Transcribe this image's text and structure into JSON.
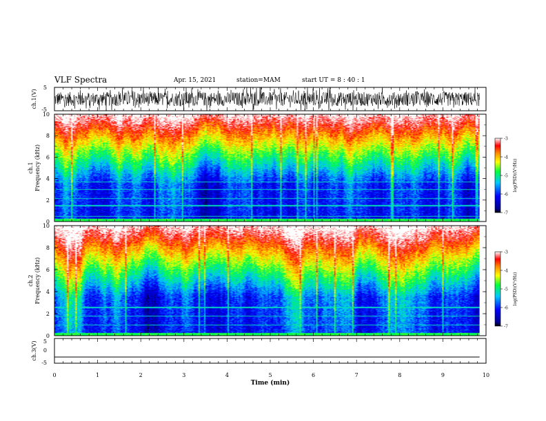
{
  "header": {
    "title": "VLF Spectra",
    "date": "Apr. 15, 2021",
    "station": "station=MAM",
    "start_ut": "start UT =  8 : 40 : 1"
  },
  "chart_data": [
    {
      "type": "line",
      "title": "",
      "ylabel": "ch.1(V)",
      "ylim": [
        -5,
        5
      ],
      "yticks": [
        5,
        -5
      ],
      "xlim": [
        0,
        10
      ],
      "description_of_signal": "",
      "series": [
        {
          "band": [
            -3,
            3
          ],
          "duration_min": 9.85
        }
      ]
    },
    {
      "type": "heatmap",
      "ylabel_top": "ch.1",
      "ylabel": "Frequency (kHz)",
      "ylim": [
        0,
        10
      ],
      "yticks": [
        0,
        2,
        4,
        6,
        8,
        10
      ],
      "xlim": [
        0,
        10
      ],
      "duration_min": 9.85,
      "colorbar": {
        "label": "log(PSD)(V²/Hz)",
        "range": [
          -7,
          -3
        ],
        "ticks": [
          -3,
          -4,
          -5,
          -6,
          -7
        ]
      }
    },
    {
      "type": "heatmap",
      "ylabel_top": "ch.2",
      "ylabel": "Frequency (kHz)",
      "ylim": [
        0,
        10
      ],
      "yticks": [
        0,
        2,
        4,
        6,
        8,
        10
      ],
      "xlim": [
        0,
        10
      ],
      "duration_min": 9.85,
      "colorbar": {
        "label": "log(PSD)(V²/Hz)",
        "range": [
          -7,
          -3
        ],
        "ticks": [
          -3,
          -4,
          -5,
          -6,
          -7
        ]
      }
    },
    {
      "type": "line",
      "ylabel": "ch.3(V)",
      "ylim": [
        -5,
        5
      ],
      "yticks": [
        5,
        0,
        -5
      ],
      "xlim": [
        0,
        10
      ],
      "xlabel": "Time (min)",
      "xticks": [
        0,
        1,
        2,
        3,
        4,
        5,
        6,
        7,
        8,
        9,
        10
      ],
      "series": [
        {
          "constant": -2.5
        }
      ]
    }
  ]
}
